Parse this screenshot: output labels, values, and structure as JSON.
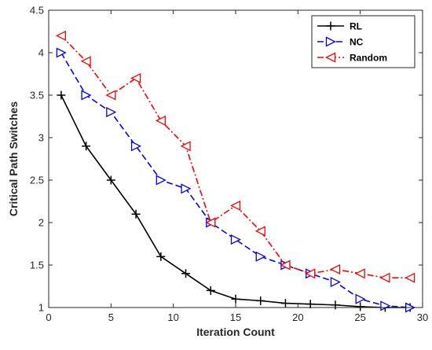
{
  "chart_data": {
    "type": "line",
    "title": "",
    "xlabel": "Iteration Count",
    "ylabel": "Critical Path Switches",
    "xlim": [
      0,
      30
    ],
    "ylim": [
      1,
      4.5
    ],
    "xticks": [
      0,
      5,
      10,
      15,
      20,
      25,
      30
    ],
    "yticks": [
      1,
      1.5,
      2,
      2.5,
      3,
      3.5,
      4,
      4.5
    ],
    "grid": false,
    "legend_position": "top-right",
    "series": [
      {
        "name": "RL",
        "color": "#000000",
        "line_style": "solid",
        "marker": "plus",
        "x": [
          1,
          3,
          5,
          7,
          9,
          11,
          13,
          15,
          17,
          19,
          21,
          23,
          25,
          27,
          29
        ],
        "values": [
          3.5,
          2.9,
          2.5,
          2.1,
          1.6,
          1.4,
          1.2,
          1.1,
          1.08,
          1.05,
          1.04,
          1.03,
          1.01,
          1.0,
          1.0
        ]
      },
      {
        "name": "NC",
        "color": "#0000ff",
        "line_style": "dashed",
        "marker": "triangle-right",
        "x": [
          1,
          3,
          5,
          7,
          9,
          11,
          13,
          15,
          17,
          19,
          21,
          23,
          25,
          27,
          29
        ],
        "values": [
          4.0,
          3.5,
          3.3,
          2.9,
          2.5,
          2.4,
          2.0,
          1.8,
          1.6,
          1.5,
          1.4,
          1.3,
          1.1,
          1.02,
          1.0
        ]
      },
      {
        "name": "Random",
        "color": "#ff0000",
        "line_style": "dashdot",
        "marker": "triangle-left",
        "x": [
          1,
          3,
          5,
          7,
          9,
          11,
          13,
          15,
          17,
          19,
          21,
          23,
          25,
          27,
          29
        ],
        "values": [
          4.2,
          3.9,
          3.5,
          3.7,
          3.2,
          2.9,
          2.0,
          2.2,
          1.9,
          1.5,
          1.4,
          1.45,
          1.4,
          1.35,
          1.35
        ]
      }
    ]
  }
}
